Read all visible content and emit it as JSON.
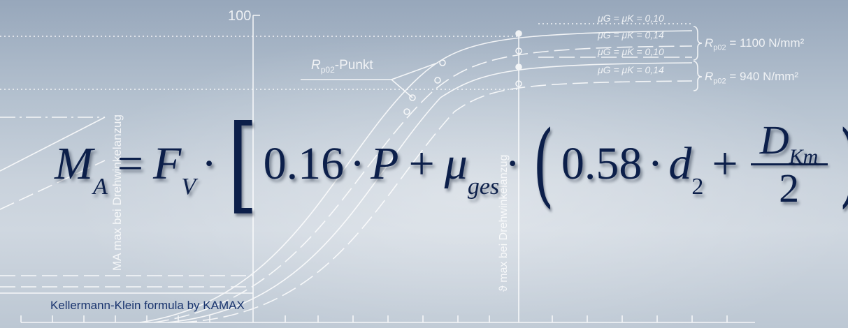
{
  "caption": "Kellermann-Klein formula by KAMAX",
  "formula": {
    "lhs": "M",
    "lhs_sub": "A",
    "eq": "=",
    "force": "F",
    "force_sub": "V",
    "dot": "·",
    "c1": "0.16",
    "pitch": "P",
    "plus": "+",
    "mu": "μ",
    "mu_sub": "ges",
    "c2": "0.58",
    "d": "d",
    "d_sub": "2",
    "frac_num": "D",
    "frac_num_sub": "Km",
    "frac_den": "2",
    "lbracket": "[",
    "rbracket": "]",
    "lparen": "(",
    "rparen": ")"
  },
  "background_chart": {
    "y_tick": "100",
    "rp_label": "R",
    "rp_sub": "p02",
    "rp_suffix": "-Punkt",
    "legend": [
      "μG = μK = 0,10",
      "μG = μK = 0,14",
      "μG = μK = 0,10",
      "μG = μK = 0,14"
    ],
    "strength_1": "= 1100 N/mm²",
    "strength_2": "= 940 N/mm²",
    "y_axis_label": "MA max bei Drehwinkelanzug",
    "v_axis_label": "ϑ max bei Drehwinkelanzug"
  },
  "colors": {
    "formula": "#0c1f4a",
    "caption": "#19346e",
    "lines": "#ffffff"
  }
}
